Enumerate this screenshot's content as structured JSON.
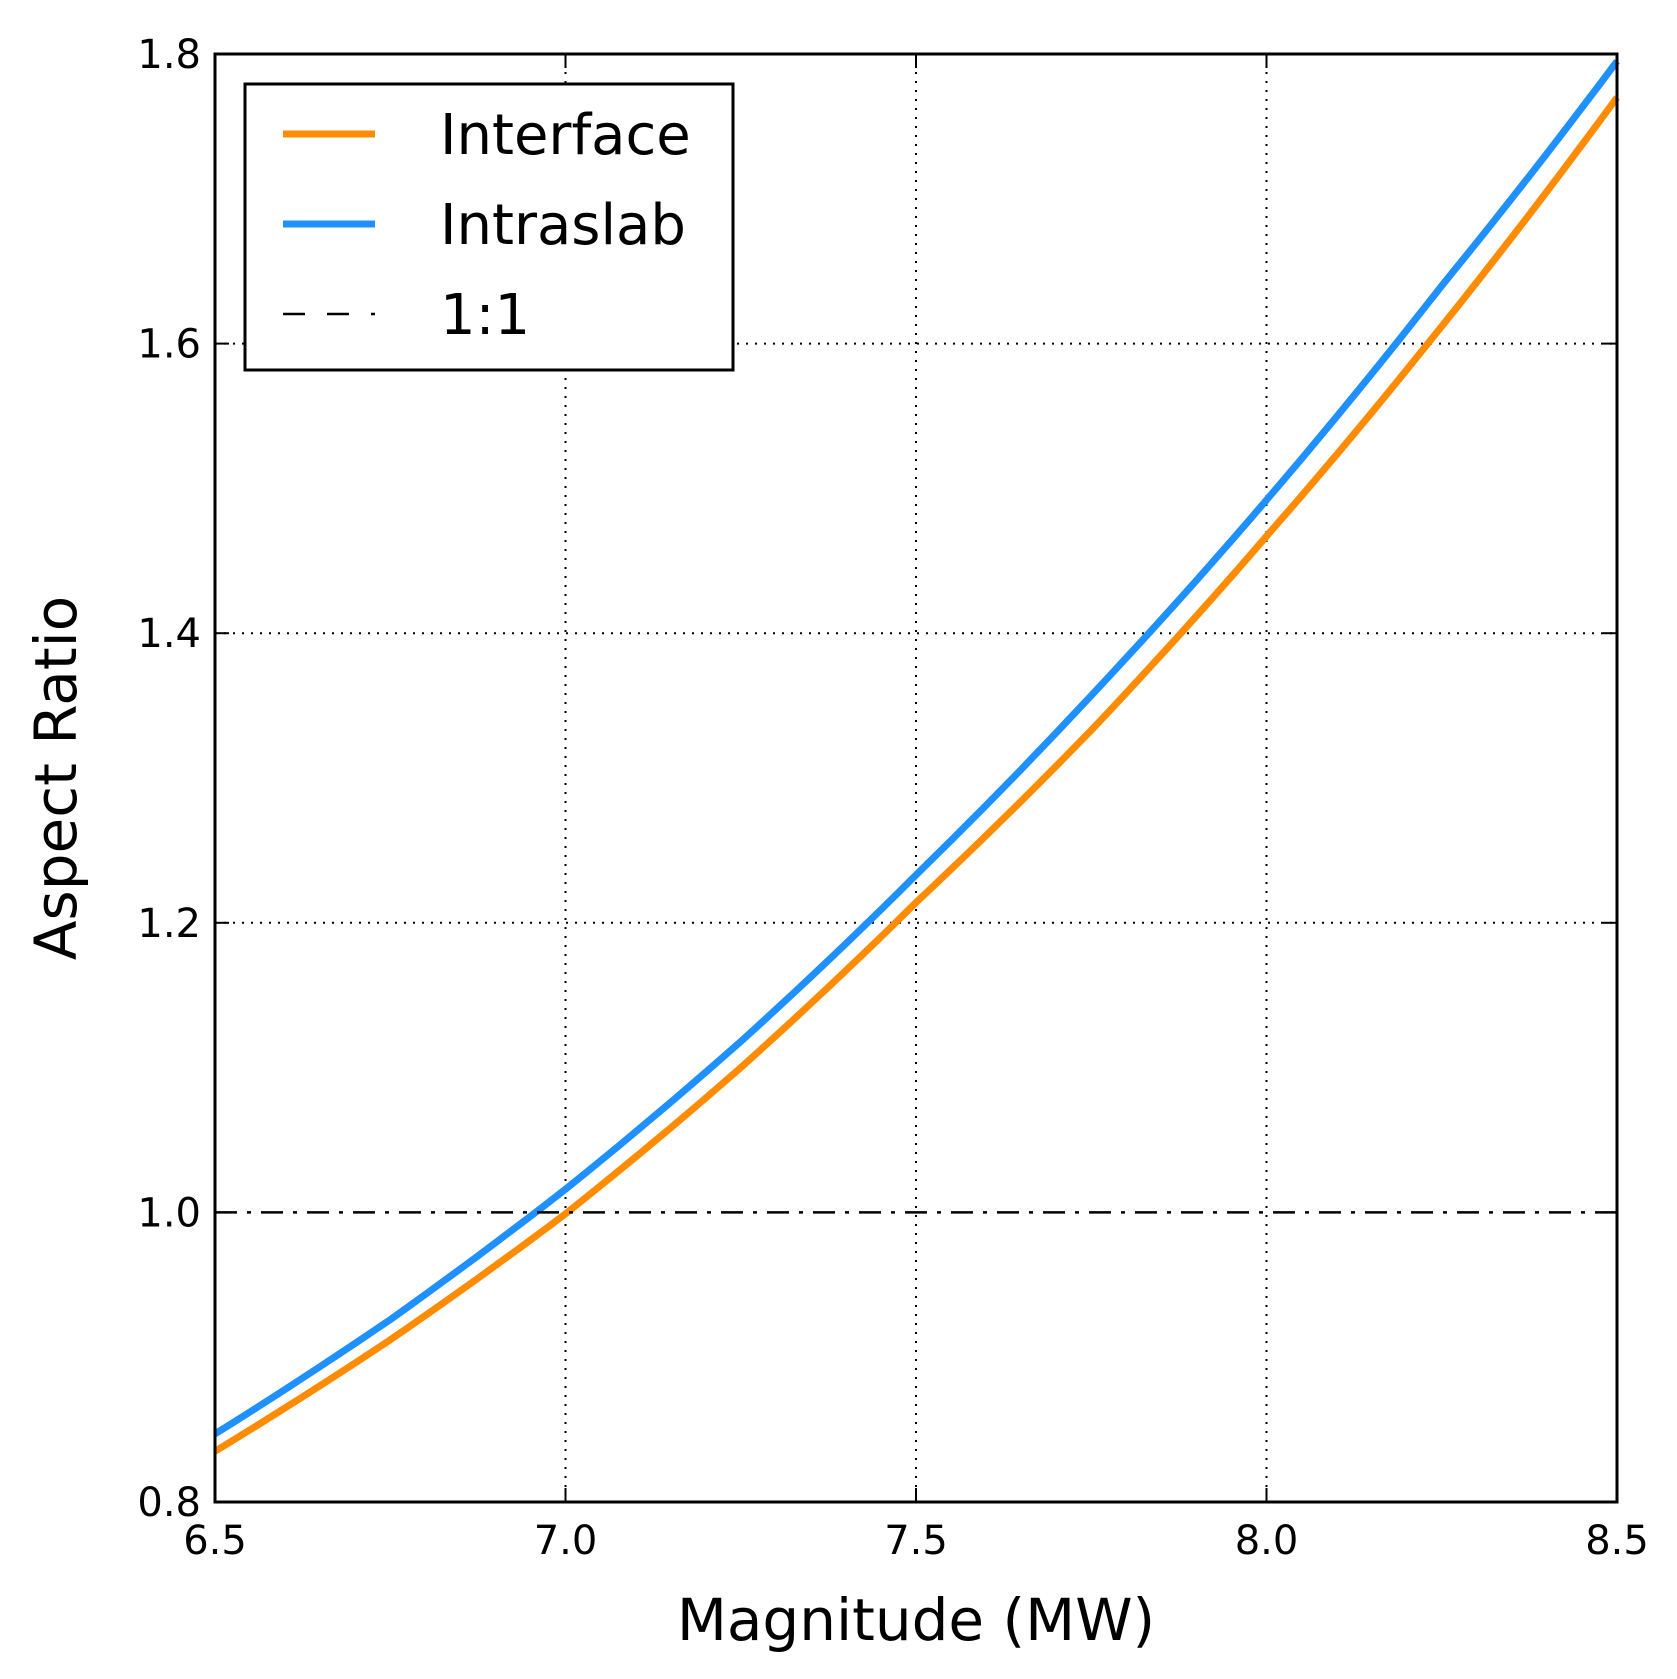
{
  "chart_data": {
    "type": "line",
    "title": "",
    "xlabel": "Magnitude (MW)",
    "ylabel": "Aspect Ratio",
    "xlim": [
      6.5,
      8.5
    ],
    "ylim": [
      0.8,
      1.8
    ],
    "xticks": [
      "6.5",
      "7.0",
      "7.5",
      "8.0",
      "8.5"
    ],
    "yticks": [
      "0.8",
      "1.0",
      "1.2",
      "1.4",
      "1.6",
      "1.8"
    ],
    "grid": true,
    "legend_position": "top-left",
    "x": [
      6.5,
      6.75,
      7.0,
      7.25,
      7.5,
      7.75,
      8.0,
      8.25,
      8.5
    ],
    "series": [
      {
        "name": "Interface",
        "color": "#ff8c00",
        "style": "solid",
        "values": [
          0.835,
          0.912,
          0.999,
          1.1,
          1.214,
          1.333,
          1.467,
          1.612,
          1.77
        ]
      },
      {
        "name": "Intraslab",
        "color": "#1e90ff",
        "style": "solid",
        "values": [
          0.847,
          0.926,
          1.016,
          1.118,
          1.233,
          1.357,
          1.492,
          1.64,
          1.795
        ]
      },
      {
        "name": "1:1",
        "color": "#000000",
        "style": "dashdot",
        "values": [
          1.0,
          1.0,
          1.0,
          1.0,
          1.0,
          1.0,
          1.0,
          1.0,
          1.0
        ]
      }
    ]
  }
}
